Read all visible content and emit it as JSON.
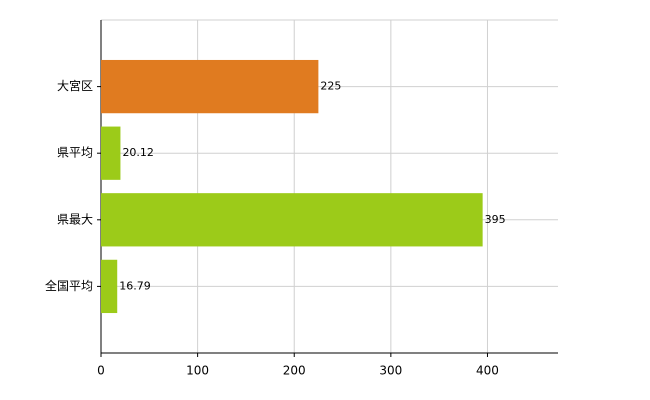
{
  "chart_data": {
    "type": "bar",
    "orientation": "horizontal",
    "categories": [
      "大宮区",
      "県平均",
      "県最大",
      "全国平均"
    ],
    "values": [
      225,
      20.12,
      395,
      16.79
    ],
    "colors": [
      "#e07b20",
      "#9ccb19",
      "#9ccb19",
      "#9ccb19"
    ],
    "xlim": [
      0,
      473
    ],
    "xticks": [
      0,
      100,
      200,
      300,
      400
    ],
    "grid": true
  }
}
